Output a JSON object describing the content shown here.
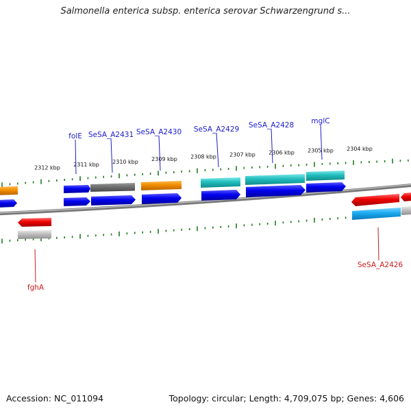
{
  "title": "Salmonella enterica subsp. enterica serovar Schwarzengrund s...",
  "footer": {
    "accession": "Accession: NC_011094",
    "summary": "Topology: circular; Length: 4,709,075 bp; Genes: 4,606"
  },
  "colors": {
    "backbone": "#808080",
    "tick": "#1a7a1a",
    "forward_label": "#1a1acc",
    "reverse_label": "#cc1a1a"
  },
  "scale": {
    "unit": "kbp",
    "ticks_kbp": [
      2312,
      2311,
      2310,
      2309,
      2308,
      2307,
      2306,
      2305,
      2304
    ]
  },
  "genes": [
    {
      "name": "folE",
      "strand": "forward",
      "track": "outer",
      "color": "blue",
      "labeled": true
    },
    {
      "name": "SeSA_A2431",
      "strand": "forward",
      "track": "outer",
      "color": "gray",
      "labeled": true
    },
    {
      "name": "SeSA_A2430",
      "strand": "forward",
      "track": "outer",
      "color": "orange",
      "labeled": true
    },
    {
      "name": "SeSA_A2429",
      "strand": "forward",
      "track": "outer",
      "color": "cyan",
      "labeled": true
    },
    {
      "name": "SeSA_A2428",
      "strand": "forward",
      "track": "outer",
      "color": "cyan",
      "labeled": true
    },
    {
      "name": "mglC",
      "strand": "forward",
      "track": "outer",
      "color": "cyan",
      "labeled": true
    },
    {
      "name": "fghA",
      "strand": "reverse",
      "track": "inner",
      "color": "red",
      "labeled": true
    },
    {
      "name": "SeSA_A2426",
      "strand": "reverse",
      "track": "inner",
      "color": "red",
      "labeled": true
    }
  ]
}
